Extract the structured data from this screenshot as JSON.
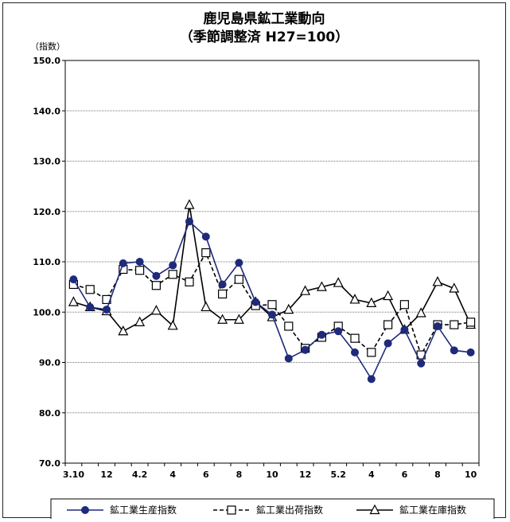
{
  "chart_data": {
    "type": "line",
    "title": "鹿児島県鉱工業動向",
    "subtitle": "（季節調整済 H27=100）",
    "ylabel": "（指数）",
    "ylim": [
      70,
      150
    ],
    "yticks": [
      "70.0",
      "80.0",
      "90.0",
      "100.0",
      "110.0",
      "120.0",
      "130.0",
      "140.0",
      "150.0"
    ],
    "x_tick_labels": [
      "3.10",
      "12",
      "4.2",
      "4",
      "6",
      "8",
      "10",
      "12",
      "5.2",
      "4",
      "6",
      "8",
      "10"
    ],
    "grid": true,
    "legend_position": "bottom",
    "series": [
      {
        "name": "鉱工業生産指数",
        "color": "#1f2a7a",
        "marker": "filled-circle",
        "line": "solid",
        "values": [
          106.5,
          101.0,
          100.5,
          109.7,
          110.0,
          107.2,
          109.3,
          118.0,
          115.0,
          105.5,
          109.8,
          102.0,
          99.5,
          90.8,
          92.5,
          95.5,
          96.2,
          92.0,
          86.7,
          93.8,
          96.5,
          89.8,
          97.2,
          92.4,
          92.0
        ]
      },
      {
        "name": "鉱工業出荷指数",
        "color": "#000000",
        "marker": "open-square",
        "line": "dashed",
        "values": [
          105.5,
          104.5,
          102.5,
          108.5,
          108.3,
          105.3,
          107.5,
          106.0,
          111.8,
          103.6,
          106.5,
          101.3,
          101.5,
          97.2,
          92.8,
          95.0,
          97.2,
          94.8,
          92.0,
          97.5,
          101.5,
          91.5,
          97.5,
          97.5,
          98.0
        ]
      },
      {
        "name": "鉱工業在庫指数",
        "color": "#000000",
        "marker": "open-triangle",
        "line": "solid",
        "values": [
          102.0,
          101.0,
          100.2,
          96.2,
          98.0,
          100.3,
          97.3,
          121.3,
          101.0,
          98.5,
          98.5,
          102.0,
          99.0,
          100.5,
          104.2,
          105.0,
          105.8,
          102.5,
          101.8,
          103.2,
          96.5,
          99.8,
          106.0,
          104.7,
          97.5
        ]
      }
    ]
  }
}
